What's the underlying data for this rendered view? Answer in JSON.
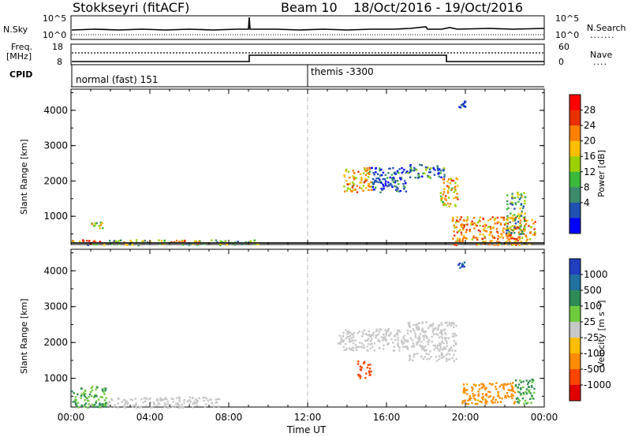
{
  "header": {
    "station": "Stokkseyri (fitACF)",
    "beam": "Beam 10",
    "dates": "18/Oct/2016 - 19/Oct/2016"
  },
  "panels": {
    "nsky_label": "N.Sky",
    "nsky_ticks": [
      "10^5",
      "10^0"
    ],
    "nsearch_label": "N.Search",
    "nsearch_ticks": [
      "10^5",
      "10^0"
    ],
    "freq_label_1": "Freq.",
    "freq_label_2": "[MHz]",
    "freq_ticks": [
      "18",
      "8"
    ],
    "nave_label": "Nave",
    "nave_ticks": [
      "60",
      "0"
    ],
    "cpid_label": "CPID",
    "cpid_programs": [
      "normal (fast) 151",
      "themis -3300"
    ]
  },
  "power_scale": {
    "label": "Power [dB]",
    "ticks": [
      "28",
      "24",
      "20",
      "16",
      "12",
      "8",
      "4"
    ],
    "colors": [
      "#ff0000",
      "#e83000",
      "#ff7f00",
      "#ffbf00",
      "#9cd000",
      "#3cb83c",
      "#3c8c6c",
      "#2050b0",
      "#0000ff"
    ]
  },
  "velocity_scale": {
    "label": "Velocity [m s⁻¹]",
    "ticks": [
      "1000",
      "500",
      "100",
      "25",
      "-25",
      "-100",
      "-500",
      "-1000"
    ],
    "colors": [
      "#2040c0",
      "#2070a0",
      "#2e8b57",
      "#6ecb3c",
      "#c8c8c8",
      "#ffbf00",
      "#ff8c00",
      "#ff4500",
      "#e00000"
    ]
  },
  "chart_data": [
    {
      "type": "heatmap",
      "name_hint": "power",
      "ylabel": "Slant Range [km]",
      "y_ticks": [
        "1000",
        "2000",
        "3000",
        "4000"
      ],
      "ylim": [
        200,
        4600
      ],
      "xlim_hours": [
        0,
        24
      ],
      "x_ticks": [
        "00:00",
        "04:00",
        "08:00",
        "12:00",
        "16:00",
        "20:00",
        "00:00"
      ],
      "clusters": [
        {
          "t": [
            0.0,
            9.5
          ],
          "r": [
            200,
            350
          ],
          "power": 14
        },
        {
          "t": [
            0.5,
            1.5
          ],
          "r": [
            250,
            350
          ],
          "power": 28
        },
        {
          "t": [
            1.0,
            1.6
          ],
          "r": [
            650,
            850
          ],
          "power": 16
        },
        {
          "t": [
            5.0,
            6.5
          ],
          "r": [
            250,
            350
          ],
          "power": 22
        },
        {
          "t": [
            13.8,
            15.2
          ],
          "r": [
            1700,
            2400
          ],
          "power": 18
        },
        {
          "t": [
            15.2,
            17.0
          ],
          "r": [
            1700,
            2400
          ],
          "power": 8
        },
        {
          "t": [
            17.0,
            19.0
          ],
          "r": [
            2100,
            2500
          ],
          "power": 10
        },
        {
          "t": [
            18.7,
            19.6
          ],
          "r": [
            1300,
            2100
          ],
          "power": 18
        },
        {
          "t": [
            19.3,
            23.5
          ],
          "r": [
            200,
            1000
          ],
          "power": 20
        },
        {
          "t": [
            22.0,
            23.0
          ],
          "r": [
            500,
            1700
          ],
          "power": 12
        },
        {
          "t": [
            19.6,
            20.0
          ],
          "r": [
            4100,
            4300
          ],
          "power": 8
        }
      ]
    },
    {
      "type": "heatmap",
      "name_hint": "velocity",
      "ylabel": "Slant Range [km]",
      "y_ticks": [
        "1000",
        "2000",
        "3000",
        "4000"
      ],
      "ylim": [
        200,
        4600
      ],
      "xlim_hours": [
        0,
        24
      ],
      "x_ticks": [
        "00:00",
        "04:00",
        "08:00",
        "12:00",
        "16:00",
        "20:00",
        "00:00"
      ],
      "xlabel": "Time UT",
      "clusters": [
        {
          "t": [
            0.0,
            1.8
          ],
          "r": [
            200,
            800
          ],
          "velocity": 60
        },
        {
          "t": [
            1.8,
            7.5
          ],
          "r": [
            200,
            500
          ],
          "velocity": 0
        },
        {
          "t": [
            13.5,
            17.0
          ],
          "r": [
            1800,
            2400
          ],
          "velocity": 0
        },
        {
          "t": [
            17.0,
            19.5
          ],
          "r": [
            1500,
            2600
          ],
          "velocity": 0
        },
        {
          "t": [
            14.5,
            15.2
          ],
          "r": [
            1000,
            1500
          ],
          "velocity": -500
        },
        {
          "t": [
            19.8,
            22.5
          ],
          "r": [
            300,
            900
          ],
          "velocity": -100
        },
        {
          "t": [
            22.5,
            23.5
          ],
          "r": [
            300,
            1000
          ],
          "velocity": 60
        },
        {
          "t": [
            19.6,
            20.0
          ],
          "r": [
            4100,
            4300
          ],
          "velocity": 800
        }
      ]
    }
  ],
  "footer": {
    "time_label": "Time UT"
  }
}
